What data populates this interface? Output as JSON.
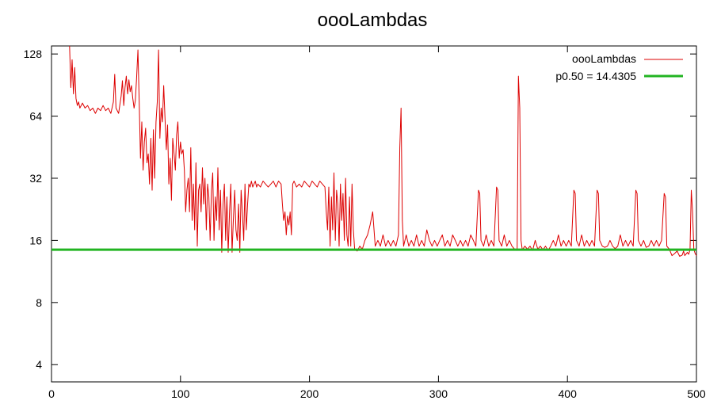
{
  "chart_data": {
    "type": "line",
    "title": "oooLambdas",
    "xlabel": "",
    "ylabel": "",
    "xlim": [
      0,
      500
    ],
    "ylim": [
      3.3,
      140
    ],
    "y_scale": "log2",
    "x_ticks": [
      0,
      100,
      200,
      300,
      400,
      500
    ],
    "y_ticks": [
      4,
      8,
      16,
      32,
      64,
      128
    ],
    "grid": false,
    "legend_position": "top-right",
    "series": [
      {
        "name": "oooLambdas",
        "color": "#dd0000",
        "points": [
          [
            14,
            140
          ],
          [
            15,
            88
          ],
          [
            16,
            120
          ],
          [
            17,
            82
          ],
          [
            18,
            110
          ],
          [
            19,
            78
          ],
          [
            20,
            72
          ],
          [
            21,
            75
          ],
          [
            22,
            70
          ],
          [
            24,
            74
          ],
          [
            26,
            70
          ],
          [
            28,
            72
          ],
          [
            30,
            68
          ],
          [
            32,
            70
          ],
          [
            34,
            66
          ],
          [
            36,
            70
          ],
          [
            38,
            68
          ],
          [
            40,
            72
          ],
          [
            42,
            68
          ],
          [
            44,
            70
          ],
          [
            46,
            66
          ],
          [
            48,
            75
          ],
          [
            49,
            102
          ],
          [
            50,
            70
          ],
          [
            52,
            66
          ],
          [
            54,
            80
          ],
          [
            55,
            95
          ],
          [
            56,
            72
          ],
          [
            57,
            88
          ],
          [
            58,
            100
          ],
          [
            59,
            82
          ],
          [
            60,
            96
          ],
          [
            61,
            84
          ],
          [
            62,
            90
          ],
          [
            63,
            78
          ],
          [
            64,
            70
          ],
          [
            65,
            76
          ],
          [
            66,
            98
          ],
          [
            67,
            134
          ],
          [
            68,
            75
          ],
          [
            69,
            40
          ],
          [
            70,
            60
          ],
          [
            71,
            35
          ],
          [
            72,
            48
          ],
          [
            73,
            56
          ],
          [
            74,
            38
          ],
          [
            75,
            42
          ],
          [
            76,
            30
          ],
          [
            77,
            50
          ],
          [
            78,
            28
          ],
          [
            79,
            55
          ],
          [
            80,
            32
          ],
          [
            81,
            60
          ],
          [
            82,
            75
          ],
          [
            83,
            134
          ],
          [
            84,
            50
          ],
          [
            85,
            70
          ],
          [
            86,
            60
          ],
          [
            87,
            90
          ],
          [
            88,
            62
          ],
          [
            89,
            44
          ],
          [
            90,
            58
          ],
          [
            91,
            30
          ],
          [
            92,
            40
          ],
          [
            93,
            25
          ],
          [
            94,
            50
          ],
          [
            95,
            42
          ],
          [
            96,
            35
          ],
          [
            97,
            52
          ],
          [
            98,
            60
          ],
          [
            99,
            40
          ],
          [
            100,
            48
          ],
          [
            101,
            42
          ],
          [
            102,
            44
          ],
          [
            103,
            35
          ],
          [
            104,
            22
          ],
          [
            105,
            28
          ],
          [
            106,
            32
          ],
          [
            107,
            22
          ],
          [
            108,
            45
          ],
          [
            109,
            20
          ],
          [
            110,
            30
          ],
          [
            111,
            18
          ],
          [
            112,
            38
          ],
          [
            113,
            15
          ],
          [
            114,
            28
          ],
          [
            115,
            30
          ],
          [
            116,
            22
          ],
          [
            117,
            36
          ],
          [
            118,
            24
          ],
          [
            119,
            32
          ],
          [
            120,
            18
          ],
          [
            121,
            30
          ],
          [
            122,
            26
          ],
          [
            123,
            16
          ],
          [
            124,
            28
          ],
          [
            125,
            34
          ],
          [
            126,
            16
          ],
          [
            127,
            26
          ],
          [
            128,
            20
          ],
          [
            129,
            36
          ],
          [
            130,
            18
          ],
          [
            131,
            28
          ],
          [
            132,
            14
          ],
          [
            133,
            24
          ],
          [
            134,
            30
          ],
          [
            135,
            16
          ],
          [
            136,
            26
          ],
          [
            137,
            14
          ],
          [
            138,
            22
          ],
          [
            139,
            30
          ],
          [
            140,
            14
          ],
          [
            141,
            20
          ],
          [
            142,
            28
          ],
          [
            143,
            18
          ],
          [
            144,
            16
          ],
          [
            145,
            24
          ],
          [
            146,
            14
          ],
          [
            147,
            28
          ],
          [
            148,
            22
          ],
          [
            149,
            16
          ],
          [
            150,
            30
          ],
          [
            151,
            18
          ],
          [
            152,
            24
          ],
          [
            153,
            30
          ],
          [
            154,
            29
          ],
          [
            155,
            31
          ],
          [
            156,
            29
          ],
          [
            157,
            30
          ],
          [
            158,
            31
          ],
          [
            159,
            29
          ],
          [
            160,
            30
          ],
          [
            162,
            29
          ],
          [
            164,
            31
          ],
          [
            166,
            30
          ],
          [
            168,
            29
          ],
          [
            170,
            30
          ],
          [
            172,
            31
          ],
          [
            174,
            29
          ],
          [
            176,
            31
          ],
          [
            178,
            30
          ],
          [
            179,
            24
          ],
          [
            180,
            20
          ],
          [
            181,
            22
          ],
          [
            182,
            17
          ],
          [
            183,
            21
          ],
          [
            184,
            19
          ],
          [
            185,
            22
          ],
          [
            186,
            17
          ],
          [
            187,
            30
          ],
          [
            188,
            31
          ],
          [
            190,
            29
          ],
          [
            192,
            30
          ],
          [
            194,
            29
          ],
          [
            196,
            31
          ],
          [
            198,
            30
          ],
          [
            200,
            29
          ],
          [
            202,
            31
          ],
          [
            204,
            30
          ],
          [
            206,
            29
          ],
          [
            208,
            31
          ],
          [
            210,
            30
          ],
          [
            212,
            29
          ],
          [
            213,
            22
          ],
          [
            214,
            18
          ],
          [
            215,
            29
          ],
          [
            216,
            15
          ],
          [
            217,
            26
          ],
          [
            218,
            18
          ],
          [
            219,
            34
          ],
          [
            220,
            16
          ],
          [
            221,
            28
          ],
          [
            222,
            24
          ],
          [
            223,
            15
          ],
          [
            224,
            30
          ],
          [
            225,
            20
          ],
          [
            226,
            27
          ],
          [
            227,
            16
          ],
          [
            228,
            32
          ],
          [
            229,
            17
          ],
          [
            230,
            15
          ],
          [
            231,
            26
          ],
          [
            232,
            15
          ],
          [
            233,
            30
          ],
          [
            234,
            18
          ],
          [
            235,
            14.5
          ],
          [
            237,
            14.2
          ],
          [
            239,
            15
          ],
          [
            241,
            14.5
          ],
          [
            243,
            16
          ],
          [
            245,
            17
          ],
          [
            247,
            19
          ],
          [
            249,
            22
          ],
          [
            251,
            15
          ],
          [
            253,
            16
          ],
          [
            255,
            15
          ],
          [
            257,
            17
          ],
          [
            259,
            15
          ],
          [
            261,
            16
          ],
          [
            263,
            15
          ],
          [
            265,
            16
          ],
          [
            267,
            15
          ],
          [
            269,
            17
          ],
          [
            270,
            45
          ],
          [
            271,
            70
          ],
          [
            272,
            20
          ],
          [
            273,
            15
          ],
          [
            275,
            17
          ],
          [
            277,
            15
          ],
          [
            279,
            16
          ],
          [
            281,
            15
          ],
          [
            283,
            17
          ],
          [
            285,
            15
          ],
          [
            287,
            16
          ],
          [
            289,
            15
          ],
          [
            291,
            18
          ],
          [
            293,
            16
          ],
          [
            295,
            15
          ],
          [
            297,
            16
          ],
          [
            299,
            15
          ],
          [
            301,
            16
          ],
          [
            303,
            17
          ],
          [
            305,
            15
          ],
          [
            307,
            16
          ],
          [
            309,
            15
          ],
          [
            311,
            17
          ],
          [
            313,
            16
          ],
          [
            315,
            15
          ],
          [
            317,
            16
          ],
          [
            319,
            15
          ],
          [
            321,
            16
          ],
          [
            323,
            15
          ],
          [
            325,
            17
          ],
          [
            327,
            16
          ],
          [
            329,
            15
          ],
          [
            331,
            28
          ],
          [
            332,
            27
          ],
          [
            333,
            16
          ],
          [
            335,
            15
          ],
          [
            337,
            17
          ],
          [
            339,
            15
          ],
          [
            341,
            16
          ],
          [
            343,
            15
          ],
          [
            345,
            29
          ],
          [
            346,
            28
          ],
          [
            347,
            16
          ],
          [
            349,
            15
          ],
          [
            351,
            17
          ],
          [
            353,
            15
          ],
          [
            355,
            16
          ],
          [
            357,
            15
          ],
          [
            359,
            14.5
          ],
          [
            361,
            14.3
          ],
          [
            362,
            100
          ],
          [
            363,
            70
          ],
          [
            364,
            16
          ],
          [
            365,
            14.4
          ],
          [
            367,
            15
          ],
          [
            369,
            14.5
          ],
          [
            371,
            15
          ],
          [
            373,
            14.3
          ],
          [
            375,
            16
          ],
          [
            377,
            14.5
          ],
          [
            379,
            15
          ],
          [
            381,
            14.4
          ],
          [
            383,
            15
          ],
          [
            385,
            14.3
          ],
          [
            387,
            15
          ],
          [
            389,
            16
          ],
          [
            391,
            15
          ],
          [
            393,
            17
          ],
          [
            395,
            15
          ],
          [
            397,
            16
          ],
          [
            399,
            15
          ],
          [
            401,
            16
          ],
          [
            403,
            15
          ],
          [
            405,
            28
          ],
          [
            406,
            27
          ],
          [
            407,
            16
          ],
          [
            409,
            15
          ],
          [
            411,
            17
          ],
          [
            413,
            15
          ],
          [
            415,
            16
          ],
          [
            417,
            15
          ],
          [
            419,
            16
          ],
          [
            421,
            15
          ],
          [
            423,
            28
          ],
          [
            424,
            27
          ],
          [
            425,
            16
          ],
          [
            427,
            15
          ],
          [
            429,
            14.8
          ],
          [
            431,
            15
          ],
          [
            433,
            16
          ],
          [
            435,
            15
          ],
          [
            437,
            14.6
          ],
          [
            439,
            15
          ],
          [
            441,
            17
          ],
          [
            443,
            15
          ],
          [
            445,
            16
          ],
          [
            447,
            15
          ],
          [
            449,
            16
          ],
          [
            451,
            15
          ],
          [
            453,
            28
          ],
          [
            454,
            27
          ],
          [
            455,
            16
          ],
          [
            457,
            15
          ],
          [
            459,
            16
          ],
          [
            461,
            14.8
          ],
          [
            463,
            15
          ],
          [
            465,
            16
          ],
          [
            467,
            15
          ],
          [
            469,
            16
          ],
          [
            471,
            15
          ],
          [
            473,
            16
          ],
          [
            475,
            27
          ],
          [
            476,
            26
          ],
          [
            477,
            15
          ],
          [
            479,
            14.5
          ],
          [
            481,
            13.5
          ],
          [
            483,
            13.8
          ],
          [
            485,
            14.2
          ],
          [
            487,
            13.4
          ],
          [
            489,
            13.6
          ],
          [
            490,
            14.2
          ],
          [
            491,
            13.5
          ],
          [
            493,
            14
          ],
          [
            494,
            13.7
          ],
          [
            495,
            14.4
          ],
          [
            496,
            28
          ],
          [
            497,
            22
          ],
          [
            498,
            14.5
          ],
          [
            499,
            13.8
          ],
          [
            500,
            13.5
          ]
        ]
      },
      {
        "name": "p0.50 = 14.4305",
        "color": "#22b422",
        "constant": 14.4305
      }
    ]
  }
}
